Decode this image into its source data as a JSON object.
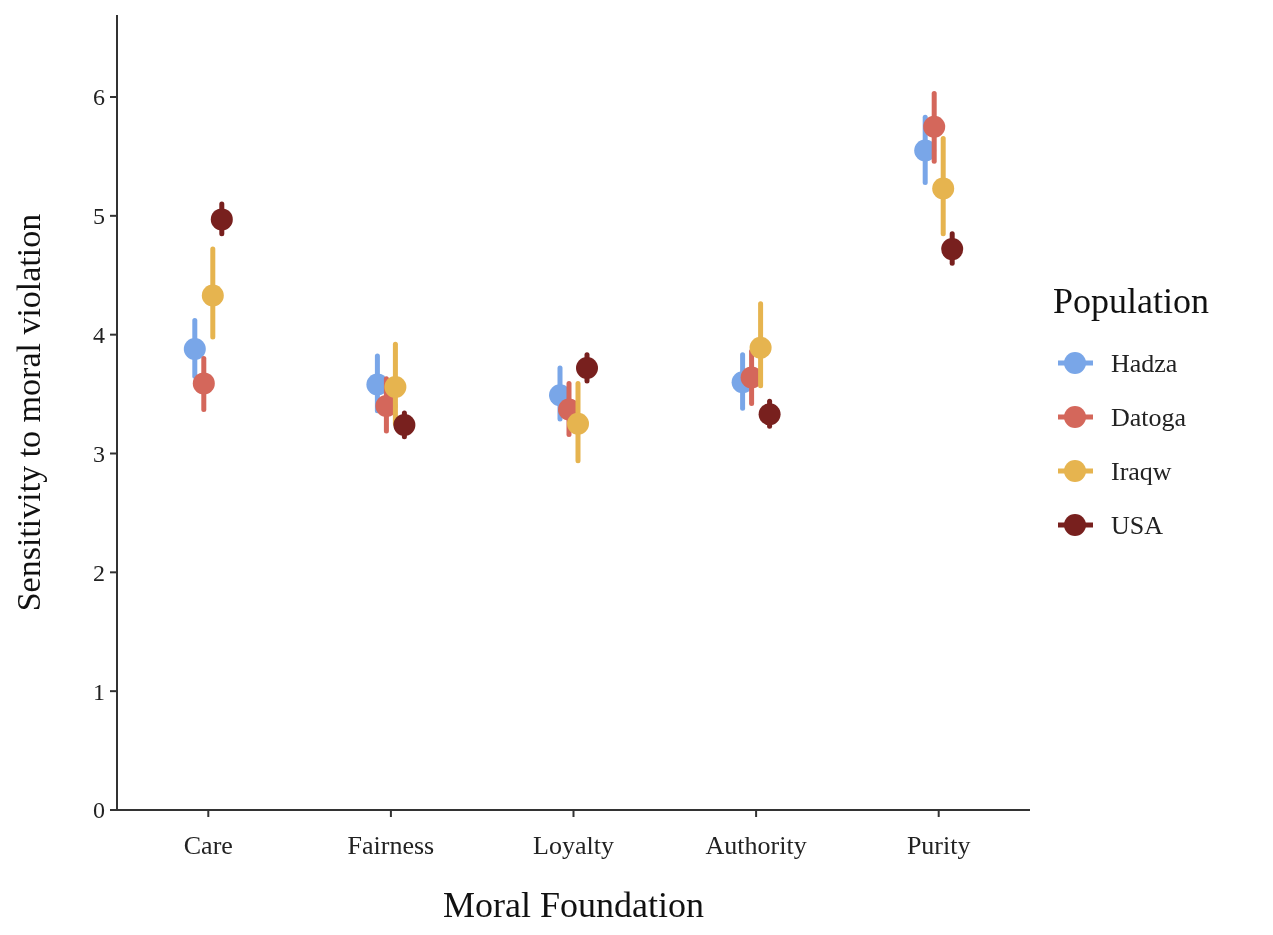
{
  "chart_data": {
    "type": "scatter",
    "xlabel": "Moral Foundation",
    "ylabel": "Sensitivity to moral violation",
    "legend_title": "Population",
    "categories": [
      "Care",
      "Fairness",
      "Loyalty",
      "Authority",
      "Purity"
    ],
    "ylim": [
      0,
      6.69
    ],
    "yticks": [
      0,
      1,
      2,
      3,
      4,
      5,
      6
    ],
    "grid": false,
    "legend": "right",
    "marker": "circle",
    "series": [
      {
        "name": "Hadza",
        "color": "#79a6e8",
        "values": [
          3.88,
          3.58,
          3.49,
          3.6,
          5.55
        ],
        "errors": [
          [
            3.65,
            4.12
          ],
          [
            3.36,
            3.82
          ],
          [
            3.29,
            3.72
          ],
          [
            3.38,
            3.83
          ],
          [
            5.28,
            5.83
          ]
        ]
      },
      {
        "name": "Datoga",
        "color": "#d4675b",
        "values": [
          3.59,
          3.4,
          3.37,
          3.64,
          5.75
        ],
        "errors": [
          [
            3.37,
            3.8
          ],
          [
            3.19,
            3.63
          ],
          [
            3.16,
            3.59
          ],
          [
            3.42,
            3.86
          ],
          [
            5.46,
            6.03
          ]
        ]
      },
      {
        "name": "Iraqw",
        "color": "#e6b44f",
        "values": [
          4.33,
          3.56,
          3.25,
          3.89,
          5.23
        ],
        "errors": [
          [
            3.98,
            4.72
          ],
          [
            3.25,
            3.92
          ],
          [
            2.94,
            3.59
          ],
          [
            3.57,
            4.26
          ],
          [
            4.85,
            5.65
          ]
        ]
      },
      {
        "name": "USA",
        "color": "#78201e",
        "values": [
          4.97,
          3.24,
          3.72,
          3.33,
          4.72
        ],
        "errors": [
          [
            4.85,
            5.1
          ],
          [
            3.14,
            3.34
          ],
          [
            3.61,
            3.83
          ],
          [
            3.23,
            3.44
          ],
          [
            4.6,
            4.85
          ]
        ]
      }
    ]
  }
}
